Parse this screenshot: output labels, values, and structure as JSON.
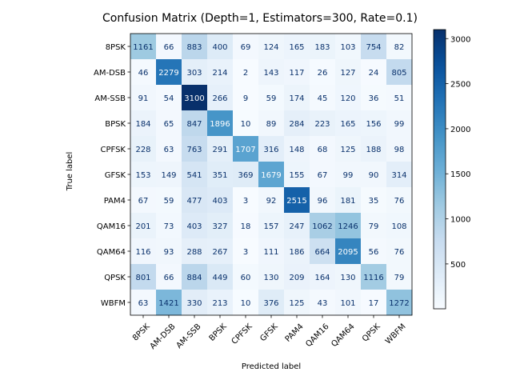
{
  "chart_data": {
    "type": "heatmap",
    "title": "Confusion Matrix (Depth=1, Estimators=300, Rate=0.1)",
    "xlabel": "Predicted label",
    "ylabel": "True label",
    "x_categories": [
      "8PSK",
      "AM-DSB",
      "AM-SSB",
      "BPSK",
      "CPFSK",
      "GFSK",
      "PAM4",
      "QAM16",
      "QAM64",
      "QPSK",
      "WBFM"
    ],
    "y_categories": [
      "8PSK",
      "AM-DSB",
      "AM-SSB",
      "BPSK",
      "CPFSK",
      "GFSK",
      "PAM4",
      "QAM16",
      "QAM64",
      "QPSK",
      "WBFM"
    ],
    "matrix": [
      [
        1161,
        66,
        883,
        400,
        69,
        124,
        165,
        183,
        103,
        754,
        82
      ],
      [
        46,
        2279,
        303,
        214,
        2,
        143,
        117,
        26,
        127,
        24,
        805
      ],
      [
        91,
        54,
        3100,
        266,
        9,
        59,
        174,
        45,
        120,
        36,
        51
      ],
      [
        184,
        65,
        847,
        1896,
        10,
        89,
        284,
        223,
        165,
        156,
        99
      ],
      [
        228,
        63,
        763,
        291,
        1707,
        316,
        148,
        68,
        125,
        188,
        98
      ],
      [
        153,
        149,
        541,
        351,
        369,
        1679,
        155,
        67,
        99,
        90,
        314
      ],
      [
        67,
        59,
        477,
        403,
        3,
        92,
        2515,
        96,
        181,
        35,
        76
      ],
      [
        201,
        73,
        403,
        327,
        18,
        157,
        247,
        1062,
        1246,
        79,
        108
      ],
      [
        116,
        93,
        288,
        267,
        3,
        111,
        186,
        664,
        2095,
        56,
        76
      ],
      [
        801,
        66,
        884,
        449,
        60,
        130,
        209,
        164,
        130,
        1116,
        79
      ],
      [
        63,
        1421,
        330,
        213,
        10,
        376,
        125,
        43,
        101,
        17,
        1272
      ]
    ],
    "colormap": "Blues",
    "vmin": 2,
    "vmax": 3100,
    "colorbar_ticks": [
      500,
      1000,
      1500,
      2000,
      2500,
      3000
    ],
    "colors": {
      "text_on_light": "#08306b",
      "text_on_dark": "#ffffff"
    }
  }
}
